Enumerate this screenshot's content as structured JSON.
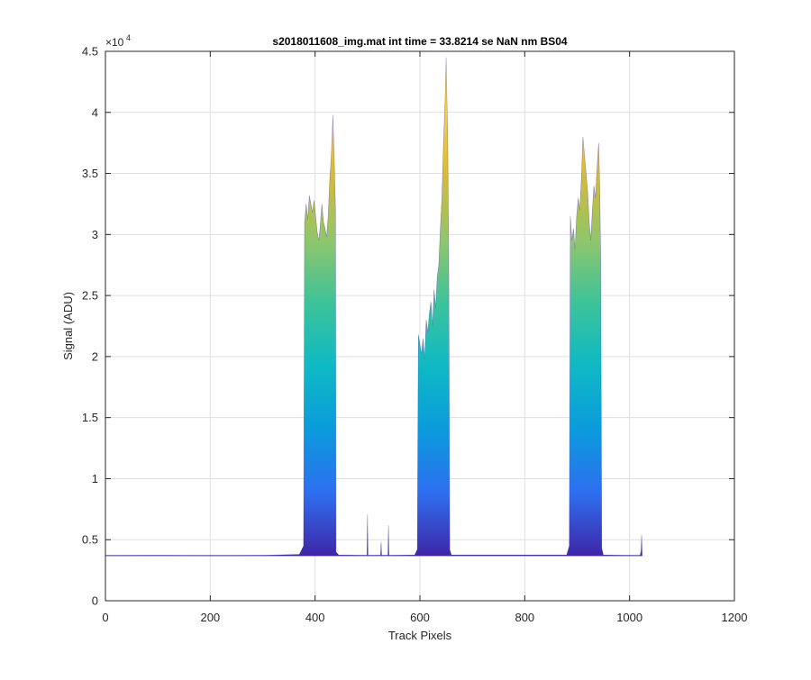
{
  "chart_data": {
    "type": "area",
    "title": "s2018011608_img.mat int time = 33.8214 se  NaN nm BS04",
    "xlabel": "Track Pixels",
    "ylabel": "Signal (ADU)",
    "xlim": [
      0,
      1200
    ],
    "ylim": [
      0,
      45000
    ],
    "xticks": [
      0,
      200,
      400,
      600,
      800,
      1000,
      1200
    ],
    "yticks": [
      0,
      5000,
      10000,
      15000,
      20000,
      25000,
      30000,
      35000,
      40000,
      45000
    ],
    "xtick_labels": [
      "0",
      "200",
      "400",
      "600",
      "800",
      "1000",
      "1200"
    ],
    "ytick_labels": [
      "0",
      "0.5",
      "1",
      "1.5",
      "2",
      "2.5",
      "3",
      "3.5",
      "4",
      "4.5"
    ],
    "y_exponent_label": "×10",
    "y_exponent_power": "4",
    "grid": true,
    "colormap": [
      "#3e26a8",
      "#2e6ff0",
      "#0b9bdc",
      "#0fb9c4",
      "#3cc39a",
      "#8fc66b",
      "#d3bb3b",
      "#fcce2e",
      "#f9fb0e"
    ],
    "baseline": 3700,
    "series": [
      {
        "values": [
          [
            0,
            3700
          ],
          [
            100,
            3720
          ],
          [
            200,
            3690
          ],
          [
            300,
            3720
          ],
          [
            370,
            3800
          ],
          [
            378,
            4500
          ],
          [
            380,
            31000
          ],
          [
            383,
            32500
          ],
          [
            386,
            31200
          ],
          [
            389,
            33200
          ],
          [
            392,
            32500
          ],
          [
            395,
            31800
          ],
          [
            398,
            32800
          ],
          [
            401,
            31500
          ],
          [
            404,
            30200
          ],
          [
            407,
            29500
          ],
          [
            410,
            30800
          ],
          [
            413,
            32500
          ],
          [
            416,
            31000
          ],
          [
            419,
            30500
          ],
          [
            422,
            29800
          ],
          [
            425,
            31500
          ],
          [
            428,
            34500
          ],
          [
            431,
            36500
          ],
          [
            434,
            39800
          ],
          [
            436,
            37000
          ],
          [
            439,
            32000
          ],
          [
            440,
            4000
          ],
          [
            445,
            3750
          ],
          [
            499,
            3720
          ],
          [
            500,
            7100
          ],
          [
            501,
            3720
          ],
          [
            525,
            3720
          ],
          [
            526,
            4800
          ],
          [
            527,
            3720
          ],
          [
            539,
            3720
          ],
          [
            540,
            6200
          ],
          [
            541,
            3720
          ],
          [
            590,
            3750
          ],
          [
            595,
            4200
          ],
          [
            597,
            21800
          ],
          [
            600,
            21000
          ],
          [
            603,
            20200
          ],
          [
            606,
            21500
          ],
          [
            609,
            19800
          ],
          [
            612,
            23000
          ],
          [
            615,
            22000
          ],
          [
            618,
            23500
          ],
          [
            621,
            24500
          ],
          [
            624,
            22500
          ],
          [
            627,
            25500
          ],
          [
            630,
            24000
          ],
          [
            633,
            26500
          ],
          [
            636,
            27500
          ],
          [
            639,
            30500
          ],
          [
            642,
            33000
          ],
          [
            645,
            37500
          ],
          [
            648,
            41000
          ],
          [
            650,
            44500
          ],
          [
            653,
            38000
          ],
          [
            655,
            28000
          ],
          [
            657,
            4200
          ],
          [
            660,
            3750
          ],
          [
            880,
            3750
          ],
          [
            885,
            4500
          ],
          [
            887,
            31500
          ],
          [
            890,
            29500
          ],
          [
            893,
            30500
          ],
          [
            896,
            28800
          ],
          [
            899,
            31500
          ],
          [
            902,
            33000
          ],
          [
            905,
            32000
          ],
          [
            908,
            34500
          ],
          [
            911,
            38000
          ],
          [
            914,
            36500
          ],
          [
            917,
            35000
          ],
          [
            920,
            33500
          ],
          [
            923,
            31000
          ],
          [
            926,
            29500
          ],
          [
            929,
            32000
          ],
          [
            932,
            34000
          ],
          [
            935,
            33000
          ],
          [
            938,
            35500
          ],
          [
            941,
            37500
          ],
          [
            943,
            34000
          ],
          [
            945,
            28000
          ],
          [
            947,
            4300
          ],
          [
            950,
            3750
          ],
          [
            1020,
            3700
          ],
          [
            1022,
            4100
          ],
          [
            1023,
            5400
          ],
          [
            1024,
            3700
          ]
        ]
      }
    ]
  }
}
